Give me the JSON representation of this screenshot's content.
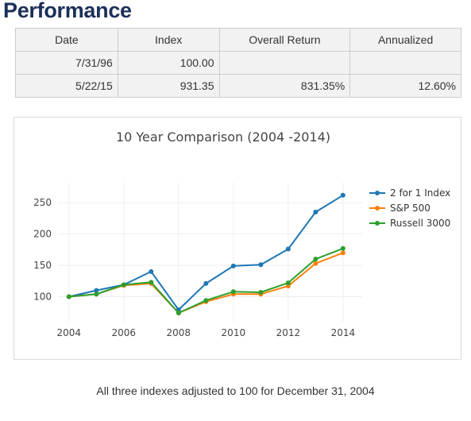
{
  "page": {
    "title": "Performance",
    "footnote": "All three indexes adjusted to 100 for December 31, 2004"
  },
  "table": {
    "headers": [
      "Date",
      "Index",
      "Overall Return",
      "Annualized"
    ],
    "rows": [
      [
        "7/31/96",
        "100.00",
        "",
        ""
      ],
      [
        "5/22/15",
        "931.35",
        "831.35%",
        "12.60%"
      ]
    ]
  },
  "chart_data": {
    "type": "line",
    "title": "10 Year Comparison (2004 -2014)",
    "xlabel": "",
    "ylabel": "",
    "x": [
      2004,
      2005,
      2006,
      2007,
      2008,
      2009,
      2010,
      2011,
      2012,
      2013,
      2014
    ],
    "xticks": [
      2004,
      2006,
      2008,
      2010,
      2012,
      2014
    ],
    "yticks": [
      100,
      150,
      200,
      250
    ],
    "xlim": [
      2003.6,
      2014.7
    ],
    "ylim": [
      60,
      282
    ],
    "grid": true,
    "legend_position": "right",
    "series": [
      {
        "name": "2 for 1 Index",
        "color": "#1f77b4",
        "values": [
          100,
          110,
          119,
          140,
          79,
          121,
          149,
          151,
          176,
          235,
          262
        ]
      },
      {
        "name": "S&P 500",
        "color": "#ff7f0e",
        "values": [
          100,
          104,
          118,
          121,
          74,
          92,
          104,
          104,
          117,
          153,
          170
        ]
      },
      {
        "name": "Russell 3000",
        "color": "#2ca02c",
        "values": [
          100,
          104,
          119,
          123,
          74,
          94,
          108,
          107,
          122,
          160,
          177
        ]
      }
    ]
  }
}
